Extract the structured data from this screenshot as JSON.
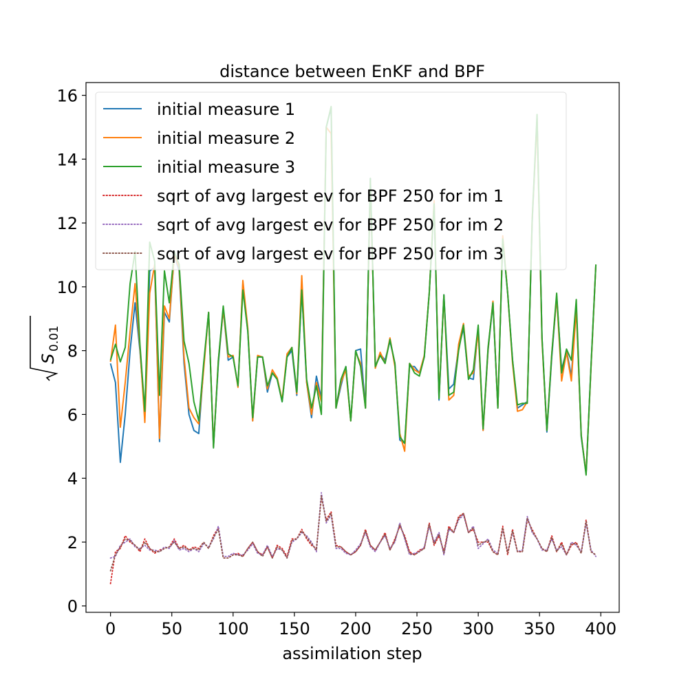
{
  "chart_data": {
    "type": "line",
    "title": "distance between EnKF and BPF",
    "xlabel": "assimilation step",
    "ylabel_base": "S",
    "ylabel_subscript": "0.01",
    "xlim": [
      -20,
      415
    ],
    "ylim": [
      -0.2,
      16.4
    ],
    "xticks": [
      0,
      50,
      100,
      150,
      200,
      250,
      300,
      350,
      400
    ],
    "yticks": [
      0,
      2,
      4,
      6,
      8,
      10,
      12,
      14,
      16
    ],
    "grid": false,
    "legend": "upper-left",
    "x": [
      0,
      4,
      8,
      12,
      16,
      20,
      24,
      28,
      32,
      36,
      40,
      44,
      48,
      52,
      56,
      60,
      64,
      68,
      72,
      76,
      80,
      84,
      88,
      92,
      96,
      100,
      104,
      108,
      112,
      116,
      120,
      124,
      128,
      132,
      136,
      140,
      144,
      148,
      152,
      156,
      160,
      164,
      168,
      172,
      176,
      180,
      184,
      188,
      192,
      196,
      200,
      204,
      208,
      212,
      216,
      220,
      224,
      228,
      232,
      236,
      240,
      244,
      248,
      252,
      256,
      260,
      264,
      268,
      272,
      276,
      280,
      284,
      288,
      292,
      296,
      300,
      304,
      308,
      312,
      316,
      320,
      324,
      328,
      332,
      336,
      340,
      344,
      348,
      352,
      356,
      360,
      364,
      368,
      372,
      376,
      380,
      384,
      388,
      392,
      396
    ],
    "series": [
      {
        "name": "initial measure 1",
        "color": "#1f77b4",
        "style": "solid",
        "values": [
          7.6,
          7.0,
          4.5,
          6.0,
          8.0,
          9.5,
          8.0,
          6.0,
          10.5,
          10.6,
          5.15,
          9.2,
          8.9,
          11.0,
          10.5,
          7.6,
          6.0,
          5.5,
          5.4,
          7.5,
          9.2,
          5.0,
          7.6,
          9.3,
          7.7,
          7.8,
          6.9,
          10.1,
          8.6,
          5.8,
          7.8,
          7.8,
          6.7,
          7.3,
          7.1,
          6.4,
          7.8,
          8.0,
          6.6,
          9.9,
          7.0,
          5.9,
          7.2,
          6.5,
          15.0,
          15.6,
          6.2,
          6.9,
          7.5,
          5.8,
          8.0,
          8.05,
          6.2,
          13.4,
          7.5,
          7.9,
          7.7,
          8.3,
          7.6,
          5.2,
          5.1,
          7.5,
          7.5,
          7.3,
          7.8,
          9.8,
          12.6,
          6.45,
          9.75,
          6.8,
          6.95,
          8.1,
          8.7,
          7.15,
          7.1,
          8.7,
          5.5,
          8.0,
          9.5,
          6.2,
          11.5,
          9.8,
          7.7,
          6.2,
          6.3,
          6.4,
          12.0,
          15.3,
          8.4,
          5.45,
          7.8,
          9.7,
          7.4,
          8.0,
          7.2,
          9.4,
          5.3,
          4.15,
          7.5,
          10.7
        ]
      },
      {
        "name": "initial measure 2",
        "color": "#ff7f0e",
        "style": "solid",
        "values": [
          7.65,
          8.8,
          5.6,
          7.0,
          8.6,
          10.1,
          8.1,
          5.75,
          9.8,
          10.7,
          5.25,
          9.4,
          9.0,
          11.0,
          10.6,
          7.8,
          6.2,
          5.9,
          5.7,
          7.4,
          9.2,
          5.0,
          7.7,
          9.3,
          7.8,
          7.85,
          6.85,
          10.2,
          8.7,
          5.8,
          7.85,
          7.8,
          6.8,
          7.4,
          7.15,
          6.45,
          7.9,
          8.1,
          6.65,
          10.35,
          7.0,
          6.0,
          7.0,
          6.4,
          15.0,
          14.8,
          6.2,
          7.0,
          7.4,
          5.8,
          7.95,
          7.6,
          6.2,
          13.3,
          7.45,
          7.95,
          7.6,
          8.4,
          7.5,
          5.4,
          4.85,
          7.6,
          7.4,
          7.3,
          7.85,
          9.8,
          12.7,
          6.55,
          9.7,
          6.45,
          6.6,
          8.2,
          8.85,
          7.2,
          7.3,
          8.6,
          5.5,
          8.05,
          9.55,
          6.2,
          11.6,
          9.8,
          7.6,
          6.1,
          6.15,
          6.4,
          12.1,
          15.2,
          8.3,
          5.5,
          7.9,
          9.7,
          7.05,
          7.95,
          7.05,
          9.3,
          5.35,
          4.15,
          7.45,
          10.7
        ]
      },
      {
        "name": "initial measure 3",
        "color": "#2ca02c",
        "style": "solid",
        "values": [
          7.7,
          8.2,
          7.65,
          8.1,
          10.1,
          11.1,
          8.2,
          6.1,
          11.4,
          10.8,
          6.6,
          10.5,
          9.5,
          11.1,
          10.7,
          8.3,
          7.6,
          6.4,
          5.8,
          7.6,
          9.2,
          4.95,
          7.7,
          9.4,
          7.9,
          7.8,
          6.9,
          9.9,
          8.6,
          5.9,
          7.8,
          7.8,
          6.9,
          7.3,
          7.1,
          6.4,
          7.8,
          8.1,
          6.7,
          9.9,
          7.1,
          6.2,
          6.9,
          6.0,
          15.0,
          15.65,
          6.2,
          7.1,
          7.5,
          5.8,
          8.0,
          7.5,
          6.2,
          13.4,
          7.5,
          7.85,
          7.6,
          8.35,
          7.6,
          5.3,
          5.1,
          7.6,
          7.3,
          7.2,
          7.8,
          9.8,
          12.6,
          6.5,
          9.75,
          6.6,
          6.7,
          8.0,
          8.8,
          7.1,
          7.4,
          8.8,
          5.55,
          8.1,
          9.5,
          6.2,
          11.5,
          9.8,
          7.7,
          6.3,
          6.35,
          6.35,
          12.1,
          15.4,
          8.4,
          5.5,
          7.9,
          9.8,
          7.3,
          8.05,
          7.7,
          9.6,
          5.35,
          4.1,
          7.5,
          10.7
        ]
      },
      {
        "name": "sqrt of avg largest ev for BPF 250 for im 1",
        "color": "#d62728",
        "style": "dotted",
        "values": [
          0.7,
          1.7,
          1.8,
          2.2,
          2.0,
          1.9,
          1.7,
          2.1,
          1.8,
          1.65,
          1.75,
          1.8,
          1.85,
          2.1,
          1.8,
          1.9,
          1.75,
          1.85,
          1.8,
          2.0,
          1.8,
          2.2,
          2.45,
          1.5,
          1.5,
          1.6,
          1.65,
          1.55,
          1.8,
          2.0,
          1.7,
          1.6,
          1.85,
          1.5,
          1.9,
          1.8,
          1.55,
          2.1,
          2.1,
          2.4,
          2.1,
          1.9,
          1.8,
          3.4,
          2.7,
          2.95,
          1.9,
          1.85,
          1.7,
          1.6,
          1.7,
          1.9,
          2.4,
          1.9,
          1.75,
          2.0,
          2.3,
          1.75,
          2.1,
          2.5,
          2.2,
          1.7,
          1.6,
          1.75,
          1.8,
          2.6,
          1.9,
          2.2,
          1.7,
          2.5,
          2.3,
          2.8,
          2.9,
          2.3,
          2.4,
          2.0,
          2.0,
          2.0,
          1.7,
          1.6,
          2.5,
          1.6,
          2.4,
          1.7,
          1.7,
          2.7,
          2.4,
          2.1,
          1.8,
          1.7,
          2.2,
          1.7,
          2.0,
          1.6,
          1.9,
          2.0,
          1.65,
          2.7,
          1.7,
          1.6
        ]
      },
      {
        "name": "sqrt of avg largest ev for BPF 250 for im 2",
        "color": "#9467bd",
        "style": "dotted",
        "values": [
          1.5,
          1.55,
          1.9,
          2.0,
          2.1,
          1.85,
          1.8,
          1.9,
          1.75,
          1.75,
          1.7,
          1.85,
          1.8,
          2.05,
          1.75,
          1.8,
          1.7,
          1.8,
          1.7,
          1.95,
          1.85,
          2.1,
          2.5,
          1.55,
          1.55,
          1.65,
          1.6,
          1.6,
          1.75,
          1.95,
          1.65,
          1.6,
          1.9,
          1.55,
          1.8,
          1.75,
          1.5,
          2.0,
          2.1,
          2.3,
          2.2,
          2.0,
          1.7,
          3.55,
          2.6,
          2.85,
          1.8,
          1.8,
          1.65,
          1.6,
          1.75,
          1.95,
          2.3,
          1.85,
          1.7,
          2.0,
          2.2,
          1.8,
          2.0,
          2.6,
          2.1,
          1.6,
          1.65,
          1.7,
          1.85,
          2.5,
          2.0,
          2.3,
          1.6,
          2.4,
          2.3,
          2.7,
          2.85,
          2.3,
          2.5,
          1.8,
          1.95,
          2.1,
          1.75,
          1.65,
          2.4,
          1.7,
          2.3,
          1.7,
          1.75,
          2.8,
          2.3,
          2.1,
          1.75,
          1.75,
          2.1,
          1.75,
          1.85,
          1.6,
          2.0,
          1.9,
          1.7,
          2.6,
          1.75,
          1.55
        ]
      },
      {
        "name": "sqrt of avg largest ev for BPF 250 for im 3",
        "color": "#8c564b",
        "style": "dotted",
        "values": [
          1.1,
          1.6,
          1.85,
          2.1,
          2.05,
          1.9,
          1.75,
          2.0,
          1.8,
          1.7,
          1.7,
          1.8,
          1.85,
          2.0,
          1.8,
          1.85,
          1.75,
          1.8,
          1.75,
          2.0,
          1.8,
          2.15,
          2.4,
          1.5,
          1.5,
          1.6,
          1.6,
          1.55,
          1.8,
          2.0,
          1.7,
          1.55,
          1.85,
          1.5,
          1.85,
          1.75,
          1.5,
          2.05,
          2.1,
          2.35,
          2.15,
          1.95,
          1.75,
          3.45,
          2.65,
          2.9,
          1.85,
          1.85,
          1.7,
          1.6,
          1.7,
          1.9,
          2.35,
          1.9,
          1.75,
          2.0,
          2.25,
          1.75,
          2.05,
          2.55,
          2.15,
          1.65,
          1.6,
          1.7,
          1.8,
          2.55,
          1.95,
          2.25,
          1.65,
          2.45,
          2.3,
          2.75,
          2.9,
          2.3,
          2.45,
          1.9,
          2.0,
          2.05,
          1.7,
          1.6,
          2.45,
          1.65,
          2.35,
          1.7,
          1.7,
          2.75,
          2.35,
          2.1,
          1.8,
          1.7,
          2.15,
          1.7,
          1.95,
          1.6,
          1.95,
          1.95,
          1.65,
          2.65,
          1.7,
          1.6
        ]
      }
    ]
  }
}
